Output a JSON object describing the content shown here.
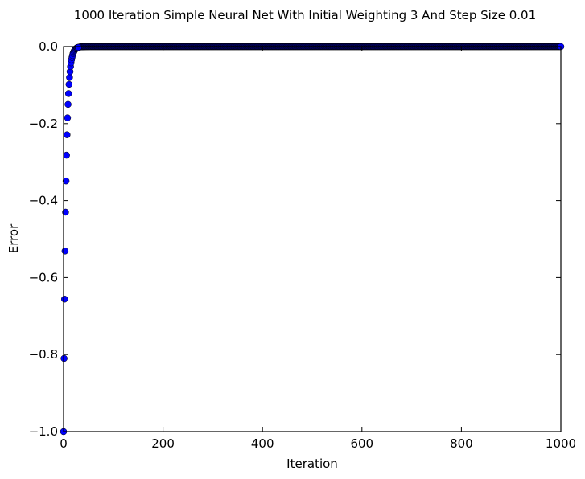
{
  "chart_data": {
    "type": "scatter",
    "title": "1000 Iteration Simple Neural Net With Initial Weighting 3 And Step Size 0.01",
    "xlabel": "Iteration",
    "ylabel": "Error",
    "xlim": [
      0,
      1000
    ],
    "ylim": [
      -1.0,
      0.0
    ],
    "xticks": [
      0,
      200,
      400,
      600,
      800,
      1000
    ],
    "xtick_labels": [
      "0",
      "200",
      "400",
      "600",
      "800",
      "1000"
    ],
    "yticks": [
      0.0,
      -0.2,
      -0.4,
      -0.6,
      -0.8,
      -1.0
    ],
    "ytick_labels": [
      "0.0",
      "−0.2",
      "−0.4",
      "−0.6",
      "−0.8",
      "−1.0"
    ],
    "grid": false,
    "legend": "none",
    "marker_color": "#0000ff",
    "series": [
      {
        "name": "error",
        "decay_per_iteration": 0.81,
        "x_start": 0,
        "x_end": 1000,
        "points": [
          {
            "x": 0,
            "y": -1.0
          },
          {
            "x": 1,
            "y": -0.81
          },
          {
            "x": 2,
            "y": -0.656
          },
          {
            "x": 3,
            "y": -0.531
          },
          {
            "x": 4,
            "y": -0.43
          },
          {
            "x": 5,
            "y": -0.349
          },
          {
            "x": 6,
            "y": -0.282
          },
          {
            "x": 7,
            "y": -0.229
          },
          {
            "x": 8,
            "y": -0.185
          },
          {
            "x": 9,
            "y": -0.15
          },
          {
            "x": 10,
            "y": -0.122
          },
          {
            "x": 11,
            "y": -0.098
          },
          {
            "x": 12,
            "y": -0.08
          },
          {
            "x": 13,
            "y": -0.065
          },
          {
            "x": 14,
            "y": -0.052
          },
          {
            "x": 15,
            "y": -0.042
          },
          {
            "x": 16,
            "y": -0.034
          },
          {
            "x": 17,
            "y": -0.028
          },
          {
            "x": 18,
            "y": -0.023
          },
          {
            "x": 19,
            "y": -0.018
          },
          {
            "x": 20,
            "y": -0.015
          },
          {
            "x": 21,
            "y": -0.012
          },
          {
            "x": 22,
            "y": -0.01
          },
          {
            "x": 23,
            "y": -0.008
          },
          {
            "x": 24,
            "y": -0.006
          },
          {
            "x": 25,
            "y": -0.005
          },
          {
            "x": 26,
            "y": -0.004
          },
          {
            "x": 27,
            "y": -0.003
          },
          {
            "x": 28,
            "y": -0.003
          },
          {
            "x": 29,
            "y": -0.002
          },
          {
            "x": 30,
            "y": -0.002
          }
        ]
      }
    ]
  }
}
